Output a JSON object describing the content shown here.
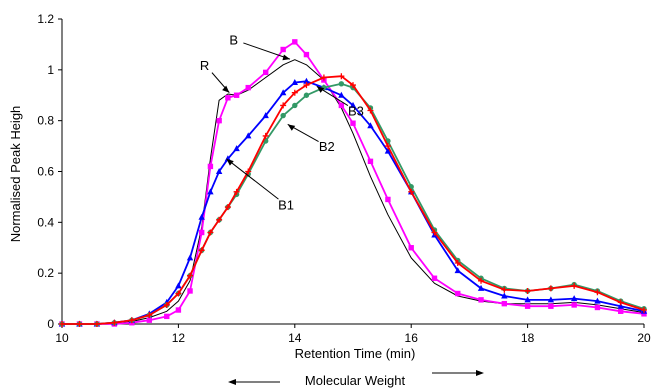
{
  "chart_data": {
    "type": "line",
    "xlabel": "Retention Time (min)",
    "ylabel": "Normalised Peak Heigh",
    "sub_xlabel": "Molecular Weight",
    "xlim": [
      10,
      20
    ],
    "ylim": [
      0,
      1.2
    ],
    "x_ticks": [
      "10",
      "12",
      "14",
      "16",
      "18",
      "20"
    ],
    "y_ticks": [
      "0",
      "0.2",
      "0.4",
      "0.6",
      "0.8",
      "1",
      "1.2"
    ],
    "grid": false,
    "series": [
      {
        "name": "R",
        "color": "#000000",
        "marker": "none",
        "x": [
          10,
          10.3,
          10.6,
          10.9,
          11.2,
          11.5,
          11.8,
          12.0,
          12.2,
          12.4,
          12.55,
          12.7,
          12.85,
          13.0,
          13.2,
          13.5,
          13.8,
          14.0,
          14.2,
          14.5,
          14.8,
          15.0,
          15.3,
          15.6,
          16.0,
          16.4,
          16.8,
          17.2,
          17.6,
          18.0,
          18.4,
          18.8,
          19.2,
          19.6,
          20
        ],
        "y": [
          0,
          0,
          0,
          0.005,
          0.01,
          0.025,
          0.05,
          0.09,
          0.17,
          0.38,
          0.65,
          0.88,
          0.905,
          0.9,
          0.92,
          0.97,
          1.02,
          1.04,
          1.02,
          0.96,
          0.85,
          0.75,
          0.58,
          0.43,
          0.26,
          0.16,
          0.11,
          0.09,
          0.08,
          0.08,
          0.08,
          0.085,
          0.075,
          0.06,
          0.045
        ]
      },
      {
        "name": "B",
        "color": "#ff00ff",
        "marker": "square",
        "x": [
          10,
          10.3,
          10.6,
          10.9,
          11.2,
          11.5,
          11.8,
          12.0,
          12.2,
          12.4,
          12.55,
          12.7,
          12.85,
          13.0,
          13.2,
          13.5,
          13.8,
          14.0,
          14.2,
          14.5,
          14.8,
          15.0,
          15.3,
          15.6,
          16.0,
          16.4,
          16.8,
          17.2,
          17.6,
          18.0,
          18.4,
          18.8,
          19.2,
          19.6,
          20
        ],
        "y": [
          0,
          0,
          0,
          0,
          0.005,
          0.015,
          0.03,
          0.055,
          0.13,
          0.36,
          0.62,
          0.8,
          0.89,
          0.9,
          0.93,
          0.99,
          1.08,
          1.11,
          1.06,
          0.96,
          0.86,
          0.79,
          0.64,
          0.49,
          0.3,
          0.18,
          0.12,
          0.095,
          0.08,
          0.07,
          0.07,
          0.075,
          0.065,
          0.05,
          0.04
        ]
      },
      {
        "name": "B1",
        "color": "#0000ff",
        "marker": "triangle",
        "x": [
          10,
          10.3,
          10.6,
          10.9,
          11.2,
          11.5,
          11.8,
          12.0,
          12.2,
          12.4,
          12.55,
          12.7,
          12.85,
          13.0,
          13.2,
          13.5,
          13.8,
          14.0,
          14.2,
          14.5,
          14.8,
          15.0,
          15.3,
          15.6,
          16.0,
          16.4,
          16.8,
          17.2,
          17.6,
          18.0,
          18.4,
          18.8,
          19.2,
          19.6,
          20
        ],
        "y": [
          0,
          0,
          0,
          0.005,
          0.015,
          0.04,
          0.085,
          0.15,
          0.26,
          0.42,
          0.52,
          0.6,
          0.65,
          0.69,
          0.74,
          0.82,
          0.91,
          0.95,
          0.955,
          0.93,
          0.9,
          0.86,
          0.78,
          0.68,
          0.52,
          0.35,
          0.21,
          0.14,
          0.11,
          0.095,
          0.095,
          0.1,
          0.09,
          0.07,
          0.05
        ]
      },
      {
        "name": "B2",
        "color": "#339966",
        "marker": "circle",
        "x": [
          10,
          10.3,
          10.6,
          10.9,
          11.2,
          11.5,
          11.8,
          12.0,
          12.2,
          12.4,
          12.55,
          12.7,
          12.85,
          13.0,
          13.2,
          13.5,
          13.8,
          14.0,
          14.2,
          14.5,
          14.8,
          15.0,
          15.3,
          15.6,
          16.0,
          16.4,
          16.8,
          17.2,
          17.6,
          18.0,
          18.4,
          18.8,
          19.2,
          19.6,
          20
        ],
        "y": [
          0,
          0,
          0,
          0.005,
          0.015,
          0.035,
          0.075,
          0.12,
          0.19,
          0.29,
          0.36,
          0.41,
          0.46,
          0.51,
          0.59,
          0.72,
          0.82,
          0.86,
          0.9,
          0.93,
          0.945,
          0.93,
          0.85,
          0.72,
          0.54,
          0.37,
          0.25,
          0.18,
          0.14,
          0.13,
          0.14,
          0.155,
          0.13,
          0.09,
          0.06
        ]
      },
      {
        "name": "B3",
        "color": "#ff0000",
        "marker": "plus",
        "x": [
          10,
          10.3,
          10.6,
          10.9,
          11.2,
          11.5,
          11.8,
          12.0,
          12.2,
          12.4,
          12.55,
          12.7,
          12.85,
          13.0,
          13.2,
          13.5,
          13.8,
          14.0,
          14.2,
          14.5,
          14.8,
          15.0,
          15.3,
          15.6,
          16.0,
          16.4,
          16.8,
          17.2,
          17.6,
          18.0,
          18.4,
          18.8,
          19.2,
          19.6,
          20
        ],
        "y": [
          0,
          0,
          0,
          0.005,
          0.015,
          0.035,
          0.075,
          0.12,
          0.19,
          0.29,
          0.36,
          0.41,
          0.46,
          0.52,
          0.6,
          0.74,
          0.86,
          0.91,
          0.94,
          0.97,
          0.975,
          0.94,
          0.84,
          0.7,
          0.52,
          0.36,
          0.24,
          0.17,
          0.135,
          0.13,
          0.14,
          0.15,
          0.125,
          0.085,
          0.055
        ]
      }
    ],
    "annotations": [
      {
        "label": "B",
        "text_x": 12.95,
        "text_y": 1.1,
        "target_x": 13.95,
        "target_y": 1.04
      },
      {
        "label": "R",
        "text_x": 12.45,
        "text_y": 1.0,
        "target_x": 12.9,
        "target_y": 0.905
      },
      {
        "label": "B3",
        "text_x": 15.05,
        "text_y": 0.82,
        "target_x": 14.35,
        "target_y": 0.94
      },
      {
        "label": "B2",
        "text_x": 14.55,
        "text_y": 0.68,
        "target_x": 13.85,
        "target_y": 0.79
      },
      {
        "label": "B1",
        "text_x": 13.85,
        "text_y": 0.45,
        "target_x": 12.8,
        "target_y": 0.655
      }
    ]
  }
}
